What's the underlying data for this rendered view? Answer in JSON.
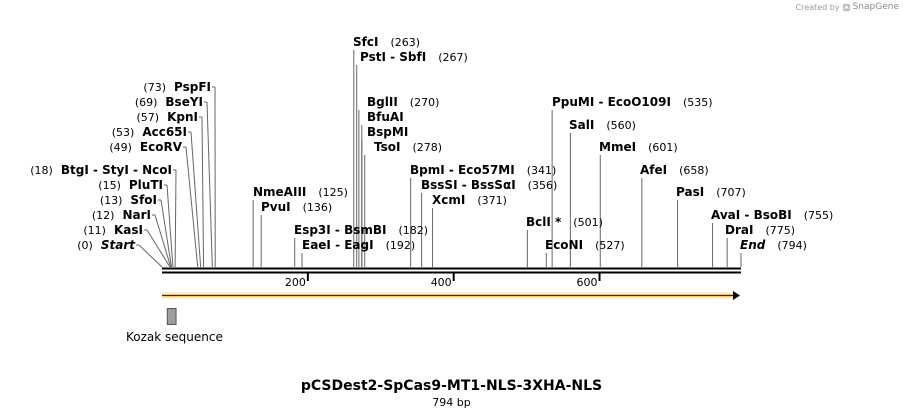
{
  "credit": {
    "prefix": "Created by",
    "brand": "SnapGene"
  },
  "plasmid": {
    "name": "pCSDest2-SpCas9-MT1-NLS-3XHA-NLS",
    "size_label": "794 bp",
    "length": 794
  },
  "ruler": {
    "ticks": [
      {
        "pos": 200,
        "label": "200"
      },
      {
        "pos": 400,
        "label": "400"
      },
      {
        "pos": 600,
        "label": "600"
      }
    ]
  },
  "features": [
    {
      "name": "Kozak sequence",
      "start": 10,
      "end": 22,
      "type": "box",
      "color": "#9e9e9e"
    },
    {
      "name": "",
      "start": 1,
      "end": 794,
      "type": "arrow",
      "color": "#f2a23c"
    }
  ],
  "sites": [
    {
      "label": "Start",
      "pos_label": "(0)",
      "pos": 0,
      "side": "left",
      "italic": true
    },
    {
      "label": "KasI",
      "pos_label": "(11)",
      "pos": 11,
      "side": "left"
    },
    {
      "label": "NarI",
      "pos_label": "(12)",
      "pos": 12,
      "side": "left"
    },
    {
      "label": "SfoI",
      "pos_label": "(13)",
      "pos": 13,
      "side": "left"
    },
    {
      "label": "PluTI",
      "pos_label": "(15)",
      "pos": 15,
      "side": "left"
    },
    {
      "label": "BtgI  - StyI  - NcoI",
      "pos_label": "(18)",
      "pos": 18,
      "side": "left"
    },
    {
      "label": "EcoRV",
      "pos_label": "(49)",
      "pos": 49,
      "side": "left"
    },
    {
      "label": "Acc65I",
      "pos_label": "(53)",
      "pos": 53,
      "side": "left"
    },
    {
      "label": "KpnI",
      "pos_label": "(57)",
      "pos": 57,
      "side": "left"
    },
    {
      "label": "BseYI",
      "pos_label": "(69)",
      "pos": 69,
      "side": "left"
    },
    {
      "label": "PspFI",
      "pos_label": "(73)",
      "pos": 73,
      "side": "left"
    },
    {
      "label": "NmeAIII",
      "pos_label": "(125)",
      "pos": 125,
      "side": "right"
    },
    {
      "label": "PvuI",
      "pos_label": "(136)",
      "pos": 136,
      "side": "right"
    },
    {
      "label": "Esp3I  - BsmBI",
      "pos_label": "(182)",
      "pos": 182,
      "side": "right"
    },
    {
      "label": "EaeI  - EagI",
      "pos_label": "(192)",
      "pos": 192,
      "side": "right"
    },
    {
      "label": "SfcI",
      "pos_label": "(263)",
      "pos": 263,
      "side": "right"
    },
    {
      "label": "PstI  - SbfI",
      "pos_label": "(267)",
      "pos": 267,
      "side": "right"
    },
    {
      "label": "BglII",
      "pos_label": "(270)",
      "pos": 270,
      "side": "right"
    },
    {
      "label": "BfuAI",
      "pos_label": "",
      "pos": 274,
      "side": "right"
    },
    {
      "label": "BspMI",
      "pos_label": "",
      "pos": 274,
      "side": "right"
    },
    {
      "label": "TsoI",
      "pos_label": "(278)",
      "pos": 278,
      "side": "right"
    },
    {
      "label": "BpmI  - Eco57MI",
      "pos_label": "(341)",
      "pos": 341,
      "side": "right"
    },
    {
      "label": "BssSI  - BssSαI",
      "pos_label": "(356)",
      "pos": 356,
      "side": "right"
    },
    {
      "label": "XcmI",
      "pos_label": "(371)",
      "pos": 371,
      "side": "right"
    },
    {
      "label": "BclI *",
      "pos_label": "(501)",
      "pos": 501,
      "side": "right"
    },
    {
      "label": "EcoNI",
      "pos_label": "(527)",
      "pos": 527,
      "side": "right"
    },
    {
      "label": "PpuMI  - EcoO109I",
      "pos_label": "(535)",
      "pos": 535,
      "side": "right"
    },
    {
      "label": "SalI",
      "pos_label": "(560)",
      "pos": 560,
      "side": "right"
    },
    {
      "label": "MmeI",
      "pos_label": "(601)",
      "pos": 601,
      "side": "right"
    },
    {
      "label": "AfeI",
      "pos_label": "(658)",
      "pos": 658,
      "side": "right"
    },
    {
      "label": "PasI",
      "pos_label": "(707)",
      "pos": 707,
      "side": "right"
    },
    {
      "label": "AvaI  - BsoBI",
      "pos_label": "(755)",
      "pos": 755,
      "side": "right"
    },
    {
      "label": "DraI",
      "pos_label": "(775)",
      "pos": 775,
      "side": "right"
    },
    {
      "label": "End",
      "pos_label": "(794)",
      "pos": 794,
      "side": "right",
      "italic": true
    }
  ]
}
